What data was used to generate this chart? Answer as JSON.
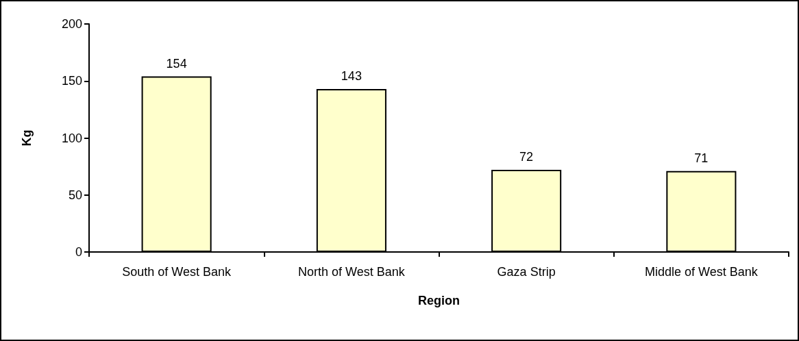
{
  "chart_data": {
    "type": "bar",
    "xlabel": "Region",
    "ylabel": "Kg",
    "categories": [
      "South of West Bank",
      "North of West Bank",
      "Gaza Strip",
      "Middle of West Bank"
    ],
    "values": [
      154,
      143,
      72,
      71
    ],
    "color": "#ffffcc",
    "ylim": [
      0,
      200
    ],
    "yticks": [
      0,
      50,
      100,
      150,
      200
    ],
    "grid": false,
    "data_labels": true
  }
}
